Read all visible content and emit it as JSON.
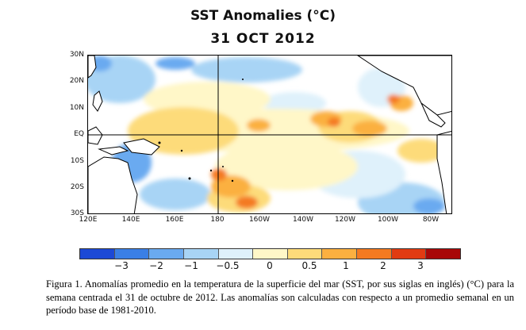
{
  "figure": {
    "title": "SST Anomalies (°C)",
    "date": "31 OCT 2012"
  },
  "map": {
    "lat_labels": [
      "30N",
      "20N",
      "10N",
      "EQ",
      "10S",
      "20S",
      "30S"
    ],
    "lon_labels": [
      "120E",
      "140E",
      "160E",
      "180",
      "160W",
      "140W",
      "120W",
      "100W",
      "80W"
    ],
    "colors": {
      "ocean_neutral": "#ffffff",
      "land": "#ffffff",
      "coastline": "#000000",
      "gridline": "#000000"
    },
    "anomaly_fields": [
      {
        "level": 0.5,
        "desc": "central equatorial band"
      },
      {
        "level": 1,
        "desc": "eastern tropics patches"
      },
      {
        "level": 2,
        "desc": "near Galapagos and south-central"
      },
      {
        "level": -0.5,
        "desc": "northwest and southeast"
      },
      {
        "level": -1,
        "desc": "Australia coast and far south"
      }
    ]
  },
  "legend": {
    "ticks": [
      "−3",
      "−2",
      "−1",
      "−0.5",
      "0",
      "0.5",
      "1",
      "2",
      "3"
    ],
    "colors": [
      "#1c49d6",
      "#3a7fe6",
      "#6aaaf0",
      "#a8d4f5",
      "#dff1fb",
      "#fff7c8",
      "#fddb7a",
      "#fbb040",
      "#f47a20",
      "#e13b12",
      "#a80808"
    ]
  },
  "caption": "Figura 1. Anomalías promedio en la temperatura de la superficie del mar (SST, por sus siglas en inglés) (°C) para la semana centrada el 31 de octubre de 2012.    Las anomalías son calculadas con respecto a un promedio semanal en un período base de 1981-2010."
}
